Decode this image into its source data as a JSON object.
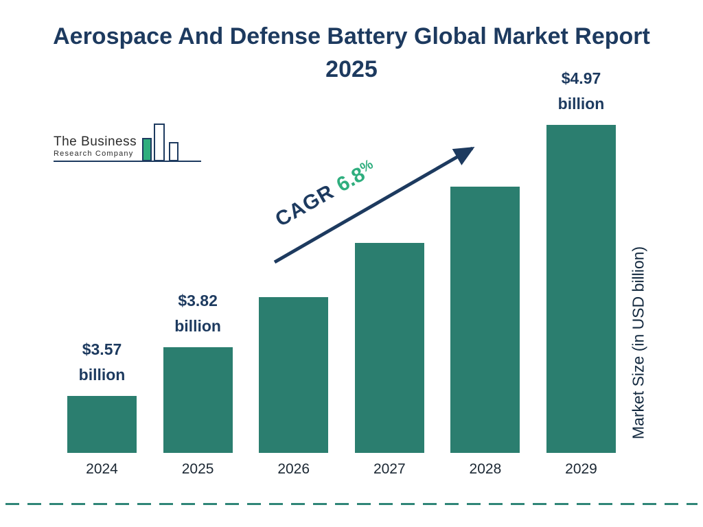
{
  "title": "Aerospace And Defense Battery Global Market Report 2025",
  "logo": {
    "name_top": "The Business",
    "name_bottom": "Research Company"
  },
  "annotation": {
    "cagr_label": "CAGR",
    "cagr_value": "6.8",
    "cagr_unit": "%"
  },
  "y_axis_label": "Market Size (in USD billion)",
  "colors": {
    "navy": "#1d3a5f",
    "bar": "#2b7e6f",
    "green": "#2fae7e",
    "teal_line": "#2f8577"
  },
  "chart_data": {
    "type": "bar",
    "title": "Aerospace And Defense Battery Global Market Report 2025",
    "categories": [
      "2024",
      "2025",
      "2026",
      "2027",
      "2028",
      "2029"
    ],
    "values": [
      3.57,
      3.82,
      4.08,
      4.36,
      4.65,
      4.97
    ],
    "value_labels": [
      [
        "$3.57",
        "billion"
      ],
      [
        "$3.82",
        "billion"
      ],
      null,
      null,
      null,
      [
        "$4.97",
        "billion"
      ]
    ],
    "xlabel": "",
    "ylabel": "Market Size (in USD billion)",
    "cagr_annotation": "CAGR 6.8%",
    "legend": "none",
    "grid": "off",
    "bar_color": "#2b7e6f"
  }
}
